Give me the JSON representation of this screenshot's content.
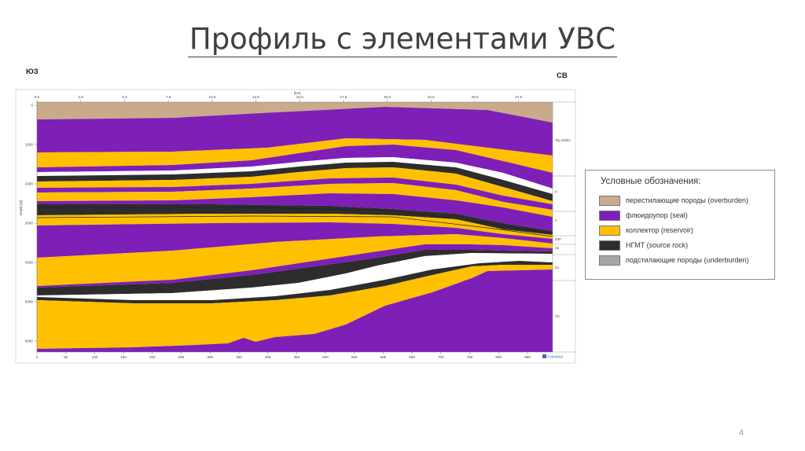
{
  "slide": {
    "title": "Профиль с элементами УВС",
    "direction_left": "ЮЗ",
    "direction_right": "СВ",
    "page_number": "4"
  },
  "profile": {
    "top_axis_unit": "[km]",
    "top_ticks": [
      "0,0",
      "2,5",
      "5,0",
      "7,5",
      "10,0",
      "12,5",
      "15,0",
      "17,5",
      "20,0",
      "22,5",
      "25,0",
      "27,5"
    ],
    "bottom_ticks": [
      "0",
      "50",
      "100",
      "150",
      "200",
      "250",
      "300",
      "350",
      "400",
      "450",
      "500",
      "550",
      "600",
      "650",
      "700",
      "750",
      "800",
      "850"
    ],
    "depth_label": "Depth [m]",
    "depth_ticks": [
      "0",
      "1000",
      "2000",
      "3000",
      "4000",
      "5000",
      "6000"
    ],
    "right_labels": [
      "Top Sedim",
      "P",
      "C",
      "D3F",
      "S2",
      "S1",
      "O3"
    ],
    "logo_text": "PetroMod",
    "colors": {
      "overburden": "#c9ab8b",
      "seal": "#7e1fb7",
      "reservoir": "#ffc000",
      "source": "#2d2d2d",
      "white": "#ffffff"
    }
  },
  "legend": {
    "title": "Условные обозначения:",
    "items": [
      {
        "label": "перестилающие породы (overburden)",
        "color": "#c9ab8b"
      },
      {
        "label": "флюидоупор (seal)",
        "color": "#7e1fb7"
      },
      {
        "label": "коллектор (reservoir)",
        "color": "#ffc000"
      },
      {
        "label": "НГМТ (source rock)",
        "color": "#2d2d2d"
      },
      {
        "label": "подстилающие породы (underburden)",
        "color": "#a6a6a6"
      }
    ]
  }
}
